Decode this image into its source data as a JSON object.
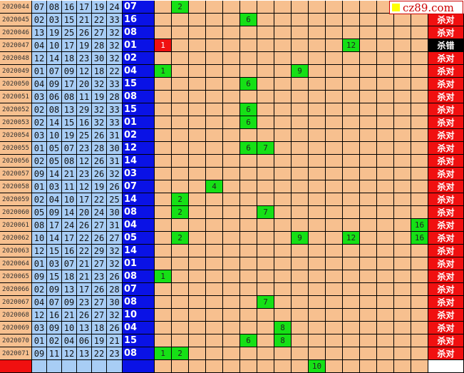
{
  "logo": {
    "text": "cz89.com"
  },
  "colors": {
    "issue_bg": "#f7c08f",
    "red_ball_bg": "#a8cdf5",
    "blue_ball_bg": "#0a12e6",
    "hit": "#16e016",
    "miss": "#f01010",
    "result_ok": "#f01010",
    "result_bad": "#000000"
  },
  "rows": [
    {
      "issue": "2020044",
      "reds": [
        "07",
        "08",
        "16",
        "17",
        "19",
        "24"
      ],
      "blue": "07",
      "marks": [
        {
          "col": 2,
          "type": "hit"
        }
      ],
      "result": ""
    },
    {
      "issue": "2020045",
      "reds": [
        "02",
        "03",
        "15",
        "21",
        "22",
        "33"
      ],
      "blue": "16",
      "marks": [
        {
          "col": 6,
          "type": "hit"
        }
      ],
      "result": "杀对"
    },
    {
      "issue": "2020046",
      "reds": [
        "13",
        "19",
        "25",
        "26",
        "27",
        "32"
      ],
      "blue": "08",
      "marks": [],
      "result": "杀对"
    },
    {
      "issue": "2020047",
      "reds": [
        "04",
        "10",
        "17",
        "19",
        "28",
        "32"
      ],
      "blue": "01",
      "marks": [
        {
          "col": 1,
          "type": "miss"
        },
        {
          "col": 12,
          "type": "hit"
        }
      ],
      "result": "杀错"
    },
    {
      "issue": "2020048",
      "reds": [
        "12",
        "14",
        "18",
        "23",
        "30",
        "32"
      ],
      "blue": "02",
      "marks": [],
      "result": "杀对"
    },
    {
      "issue": "2020049",
      "reds": [
        "01",
        "07",
        "09",
        "12",
        "18",
        "22"
      ],
      "blue": "04",
      "marks": [
        {
          "col": 1,
          "type": "hit"
        },
        {
          "col": 9,
          "type": "hit"
        }
      ],
      "result": "杀对"
    },
    {
      "issue": "2020050",
      "reds": [
        "04",
        "09",
        "17",
        "20",
        "32",
        "33"
      ],
      "blue": "15",
      "marks": [
        {
          "col": 6,
          "type": "hit"
        }
      ],
      "result": "杀对"
    },
    {
      "issue": "2020051",
      "reds": [
        "03",
        "06",
        "08",
        "11",
        "19",
        "28"
      ],
      "blue": "08",
      "marks": [],
      "result": "杀对"
    },
    {
      "issue": "2020052",
      "reds": [
        "02",
        "08",
        "13",
        "29",
        "32",
        "33"
      ],
      "blue": "15",
      "marks": [
        {
          "col": 6,
          "type": "hit"
        }
      ],
      "result": "杀对"
    },
    {
      "issue": "2020053",
      "reds": [
        "02",
        "14",
        "15",
        "16",
        "32",
        "33"
      ],
      "blue": "01",
      "marks": [
        {
          "col": 6,
          "type": "hit"
        }
      ],
      "result": "杀对"
    },
    {
      "issue": "2020054",
      "reds": [
        "03",
        "10",
        "19",
        "25",
        "26",
        "31"
      ],
      "blue": "02",
      "marks": [],
      "result": "杀对"
    },
    {
      "issue": "2020055",
      "reds": [
        "01",
        "05",
        "07",
        "23",
        "28",
        "30"
      ],
      "blue": "12",
      "marks": [
        {
          "col": 6,
          "type": "hit"
        },
        {
          "col": 7,
          "type": "hit"
        }
      ],
      "result": "杀对"
    },
    {
      "issue": "2020056",
      "reds": [
        "02",
        "05",
        "08",
        "12",
        "26",
        "31"
      ],
      "blue": "14",
      "marks": [],
      "result": "杀对"
    },
    {
      "issue": "2020057",
      "reds": [
        "09",
        "14",
        "21",
        "23",
        "26",
        "32"
      ],
      "blue": "03",
      "marks": [],
      "result": "杀对"
    },
    {
      "issue": "2020058",
      "reds": [
        "01",
        "03",
        "11",
        "12",
        "19",
        "26"
      ],
      "blue": "07",
      "marks": [
        {
          "col": 4,
          "type": "hit"
        }
      ],
      "result": "杀对"
    },
    {
      "issue": "2020059",
      "reds": [
        "02",
        "04",
        "10",
        "17",
        "22",
        "25"
      ],
      "blue": "14",
      "marks": [
        {
          "col": 2,
          "type": "hit"
        }
      ],
      "result": "杀对"
    },
    {
      "issue": "2020060",
      "reds": [
        "05",
        "09",
        "14",
        "20",
        "24",
        "30"
      ],
      "blue": "08",
      "marks": [
        {
          "col": 2,
          "type": "hit"
        },
        {
          "col": 7,
          "type": "hit"
        }
      ],
      "result": "杀对"
    },
    {
      "issue": "2020061",
      "reds": [
        "08",
        "17",
        "24",
        "26",
        "27",
        "31"
      ],
      "blue": "04",
      "marks": [
        {
          "col": 16,
          "type": "hit"
        }
      ],
      "result": "杀对"
    },
    {
      "issue": "2020062",
      "reds": [
        "10",
        "14",
        "17",
        "22",
        "26",
        "27"
      ],
      "blue": "05",
      "marks": [
        {
          "col": 2,
          "type": "hit"
        },
        {
          "col": 9,
          "type": "hit"
        },
        {
          "col": 12,
          "type": "hit"
        },
        {
          "col": 16,
          "type": "hit"
        }
      ],
      "result": "杀对"
    },
    {
      "issue": "2020063",
      "reds": [
        "12",
        "15",
        "16",
        "22",
        "29",
        "32"
      ],
      "blue": "14",
      "marks": [],
      "result": "杀对"
    },
    {
      "issue": "2020064",
      "reds": [
        "01",
        "03",
        "07",
        "21",
        "27",
        "32"
      ],
      "blue": "01",
      "marks": [],
      "result": "杀对"
    },
    {
      "issue": "2020065",
      "reds": [
        "09",
        "15",
        "18",
        "21",
        "23",
        "26"
      ],
      "blue": "08",
      "marks": [
        {
          "col": 1,
          "type": "hit"
        }
      ],
      "result": "杀对"
    },
    {
      "issue": "2020066",
      "reds": [
        "02",
        "09",
        "13",
        "17",
        "26",
        "28"
      ],
      "blue": "07",
      "marks": [],
      "result": "杀对"
    },
    {
      "issue": "2020067",
      "reds": [
        "04",
        "07",
        "09",
        "23",
        "27",
        "30"
      ],
      "blue": "08",
      "marks": [
        {
          "col": 7,
          "type": "hit"
        }
      ],
      "result": "杀对"
    },
    {
      "issue": "2020068",
      "reds": [
        "12",
        "16",
        "21",
        "26",
        "27",
        "32"
      ],
      "blue": "10",
      "marks": [],
      "result": "杀对"
    },
    {
      "issue": "2020069",
      "reds": [
        "03",
        "09",
        "10",
        "13",
        "18",
        "26"
      ],
      "blue": "04",
      "marks": [
        {
          "col": 8,
          "type": "hit"
        }
      ],
      "result": "杀对"
    },
    {
      "issue": "2020070",
      "reds": [
        "01",
        "02",
        "04",
        "06",
        "19",
        "21"
      ],
      "blue": "15",
      "marks": [
        {
          "col": 6,
          "type": "hit"
        },
        {
          "col": 8,
          "type": "hit"
        }
      ],
      "result": "杀对"
    },
    {
      "issue": "2020071",
      "reds": [
        "09",
        "11",
        "12",
        "13",
        "22",
        "23"
      ],
      "blue": "08",
      "marks": [
        {
          "col": 1,
          "type": "hit"
        },
        {
          "col": 2,
          "type": "hit"
        }
      ],
      "result": "杀对"
    }
  ],
  "prediction_row": {
    "marks": [
      {
        "col": 10,
        "type": "hit"
      }
    ]
  }
}
